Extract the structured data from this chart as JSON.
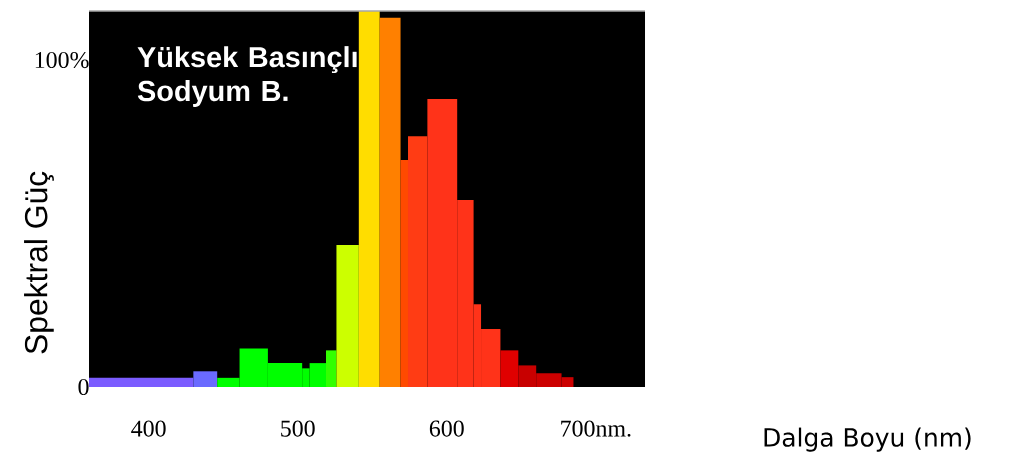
{
  "chart_data": {
    "type": "histogram",
    "title": "Yüksek Basınçlı Sodyum B.",
    "xlabel": "Dalga Boyu (nm)",
    "ylabel": "Spektral Güç",
    "bins": [
      360,
      430,
      446,
      461,
      480,
      503,
      508,
      519,
      526,
      541,
      555,
      569,
      574,
      587,
      607,
      618,
      623,
      636,
      648,
      660,
      677,
      685
    ],
    "values": [
      2.8,
      4.8,
      2.8,
      11.8,
      7.3,
      5.7,
      7.3,
      11.2,
      43.4,
      115,
      112.9,
      69.4,
      76.7,
      88.1,
      57.2,
      25.3,
      17.7,
      11.2,
      6.6,
      4.2,
      3.0
    ],
    "colors": [
      "#7b5cff",
      "#6a6aff",
      "#00ff00",
      "#00ff00",
      "#00ff00",
      "#00ff00",
      "#00ff00",
      "#33ff00",
      "#ccff00",
      "#ffdd00",
      "#ff8000",
      "#ff4a00",
      "#ff3c14",
      "#ff3319",
      "#ff3319",
      "#ff3319",
      "#ff3319",
      "#e00000",
      "#c80000",
      "#cc0000",
      "#cc0000"
    ],
    "xlim": [
      360,
      733
    ],
    "ylim": [
      0,
      115
    ],
    "xticks": [
      400,
      500,
      600,
      {
        "value": 700,
        "label": "700nm."
      }
    ],
    "yticks": [
      {
        "value": 0,
        "label": "0"
      },
      {
        "value": 100,
        "label": "100%"
      }
    ]
  }
}
